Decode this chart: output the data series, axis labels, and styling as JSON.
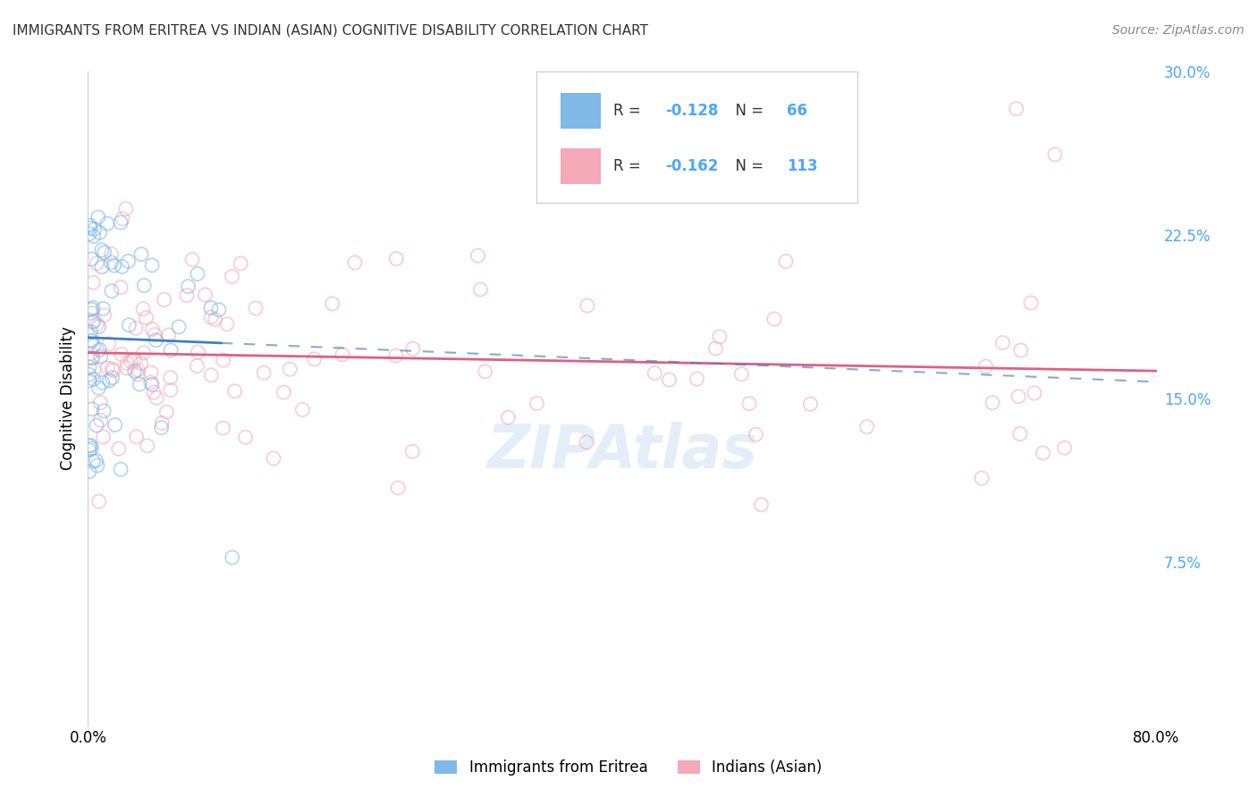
{
  "title": "IMMIGRANTS FROM ERITREA VS INDIAN (ASIAN) COGNITIVE DISABILITY CORRELATION CHART",
  "source": "Source: ZipAtlas.com",
  "ylabel": "Cognitive Disability",
  "xlim": [
    0.0,
    0.8
  ],
  "ylim": [
    0.0,
    0.3
  ],
  "yticks": [
    0.0,
    0.075,
    0.15,
    0.225,
    0.3
  ],
  "ytick_labels": [
    "",
    "7.5%",
    "15.0%",
    "22.5%",
    "30.0%"
  ],
  "xticks": [
    0.0,
    0.1,
    0.2,
    0.3,
    0.4,
    0.5,
    0.6,
    0.7,
    0.8
  ],
  "xtick_labels": [
    "0.0%",
    "",
    "",
    "",
    "",
    "",
    "",
    "",
    "80.0%"
  ],
  "eritrea_color": "#7EB9E8",
  "indian_color": "#F4A8B8",
  "eritrea_line_color": "#4080C0",
  "indian_line_color": "#E06080",
  "eritrea_R": -0.128,
  "eritrea_N": 66,
  "indian_R": -0.162,
  "indian_N": 113,
  "watermark": "ZIPAtlas",
  "background_color": "#ffffff",
  "grid_color": "#d0d0d0",
  "right_axis_color": "#4da6ff",
  "title_fontsize": 11,
  "watermark_fontsize": 48,
  "scatter_size": 120,
  "scatter_alpha": 0.6,
  "scatter_linewidth": 1.2
}
